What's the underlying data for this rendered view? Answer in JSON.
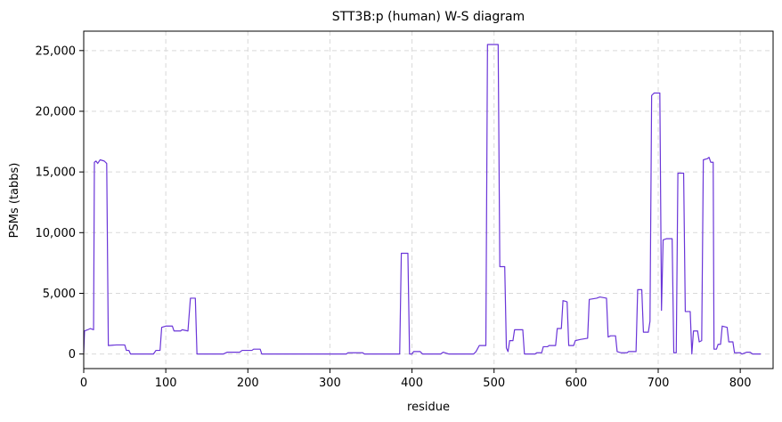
{
  "chart_data": {
    "type": "line",
    "title": "STT3B:p (human) W-S diagram",
    "xlabel": "residue",
    "ylabel": "PSMs (tabbs)",
    "color": "#6a35d8",
    "grid": true,
    "xlim": [
      0,
      840
    ],
    "ylim": [
      -1200,
      26600
    ],
    "xticks": [
      0,
      100,
      200,
      300,
      400,
      500,
      600,
      700,
      800
    ],
    "yticks": [
      0,
      {
        "value": 5000,
        "label": "5,000"
      },
      {
        "value": 10000,
        "label": "10,000"
      },
      {
        "value": 15000,
        "label": "15,000"
      },
      {
        "value": 20000,
        "label": "20,000"
      },
      {
        "value": 25000,
        "label": "25,000"
      }
    ],
    "x": [
      0,
      1,
      5,
      8,
      12,
      13,
      15,
      17,
      20,
      25,
      28,
      30,
      40,
      50,
      52,
      55,
      57,
      85,
      88,
      93,
      95,
      100,
      108,
      110,
      118,
      120,
      127,
      130,
      136,
      138,
      170,
      175,
      190,
      193,
      205,
      207,
      215,
      217,
      320,
      322,
      340,
      342,
      385,
      387,
      395,
      397,
      400,
      402,
      410,
      413,
      435,
      438,
      445,
      475,
      478,
      482,
      490,
      492,
      505,
      507,
      513,
      515,
      517,
      519,
      523,
      525,
      535,
      537,
      550,
      552,
      558,
      560,
      565,
      567,
      575,
      577,
      582,
      584,
      589,
      591,
      597,
      599,
      605,
      614,
      616,
      625,
      629,
      637,
      639,
      642,
      648,
      650,
      655,
      662,
      664,
      673,
      675,
      680,
      682,
      688,
      690,
      692,
      695,
      702,
      704,
      706,
      710,
      717,
      719,
      722,
      724,
      731,
      733,
      739,
      741,
      743,
      748,
      750,
      753,
      755,
      760,
      762,
      764,
      767,
      768,
      771,
      773,
      776,
      778,
      784,
      786,
      791,
      793,
      800,
      802,
      808,
      812,
      815,
      825
    ],
    "values": [
      100,
      1900,
      2000,
      2100,
      2000,
      15800,
      15900,
      15700,
      16000,
      15900,
      15700,
      700,
      750,
      750,
      300,
      300,
      0,
      0,
      300,
      300,
      2200,
      2300,
      2300,
      1900,
      1900,
      2000,
      1900,
      4600,
      4600,
      0,
      0,
      150,
      150,
      300,
      300,
      400,
      400,
      0,
      0,
      100,
      100,
      0,
      0,
      8300,
      8300,
      0,
      0,
      200,
      200,
      0,
      0,
      150,
      0,
      0,
      200,
      700,
      700,
      25500,
      25500,
      7200,
      7200,
      500,
      200,
      1100,
      1100,
      2000,
      2000,
      0,
      0,
      100,
      100,
      600,
      600,
      700,
      700,
      2100,
      2100,
      4400,
      4300,
      700,
      700,
      1100,
      1200,
      1300,
      4500,
      4600,
      4700,
      4600,
      1400,
      1500,
      1500,
      200,
      100,
      100,
      200,
      200,
      5300,
      5300,
      1800,
      1800,
      2700,
      21300,
      21500,
      21500,
      3600,
      9400,
      9500,
      9500,
      100,
      100,
      14900,
      14900,
      3500,
      3500,
      0,
      1900,
      1900,
      1000,
      1100,
      16000,
      16100,
      16200,
      15800,
      15800,
      400,
      400,
      800,
      800,
      2300,
      2200,
      1000,
      1000,
      100,
      100,
      0,
      150,
      150,
      0,
      0
    ]
  }
}
